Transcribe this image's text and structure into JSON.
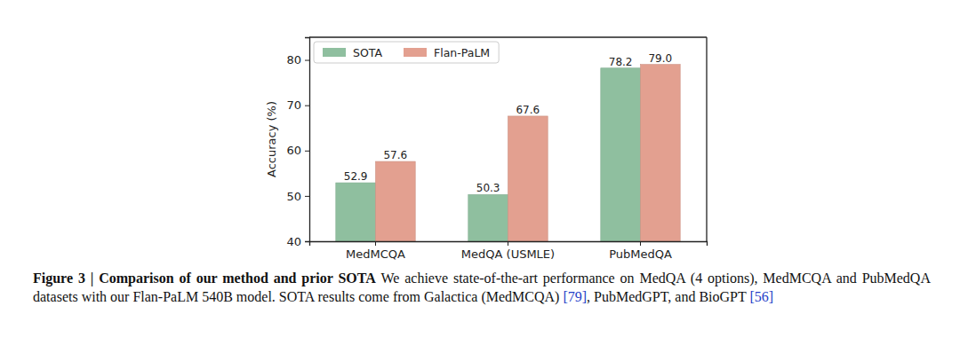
{
  "chart_data": {
    "type": "bar",
    "title": "Figure 3 | Comparison of our method and prior SOTA",
    "caption": "We achieve state-of-the-art performance on MedQA (4 options), MedMCQA and PubMedQA datasets with our Flan-PaLM 540B model. SOTA results come from Galactica (MedMCQA) [79], PubMedGPT, and BioGPT [56]",
    "categories": [
      "MedMCQA",
      "MedQA (USMLE)",
      "PubMedQA"
    ],
    "series": [
      {
        "name": "SOTA",
        "color": "#8fbf9f",
        "values": [
          52.9,
          50.3,
          78.2
        ]
      },
      {
        "name": "Flan-PaLM",
        "color": "#e3a090",
        "values": [
          57.6,
          67.6,
          79.0
        ],
        "value_labels": [
          "57.6",
          "67.6",
          "79.0"
        ]
      }
    ],
    "y_label": "Accuracy (%)",
    "ylim": [
      40,
      85
    ],
    "yticks": [
      40,
      50,
      60,
      70,
      80
    ],
    "grid": false,
    "legend": "upper left",
    "data_labels": true
  }
}
